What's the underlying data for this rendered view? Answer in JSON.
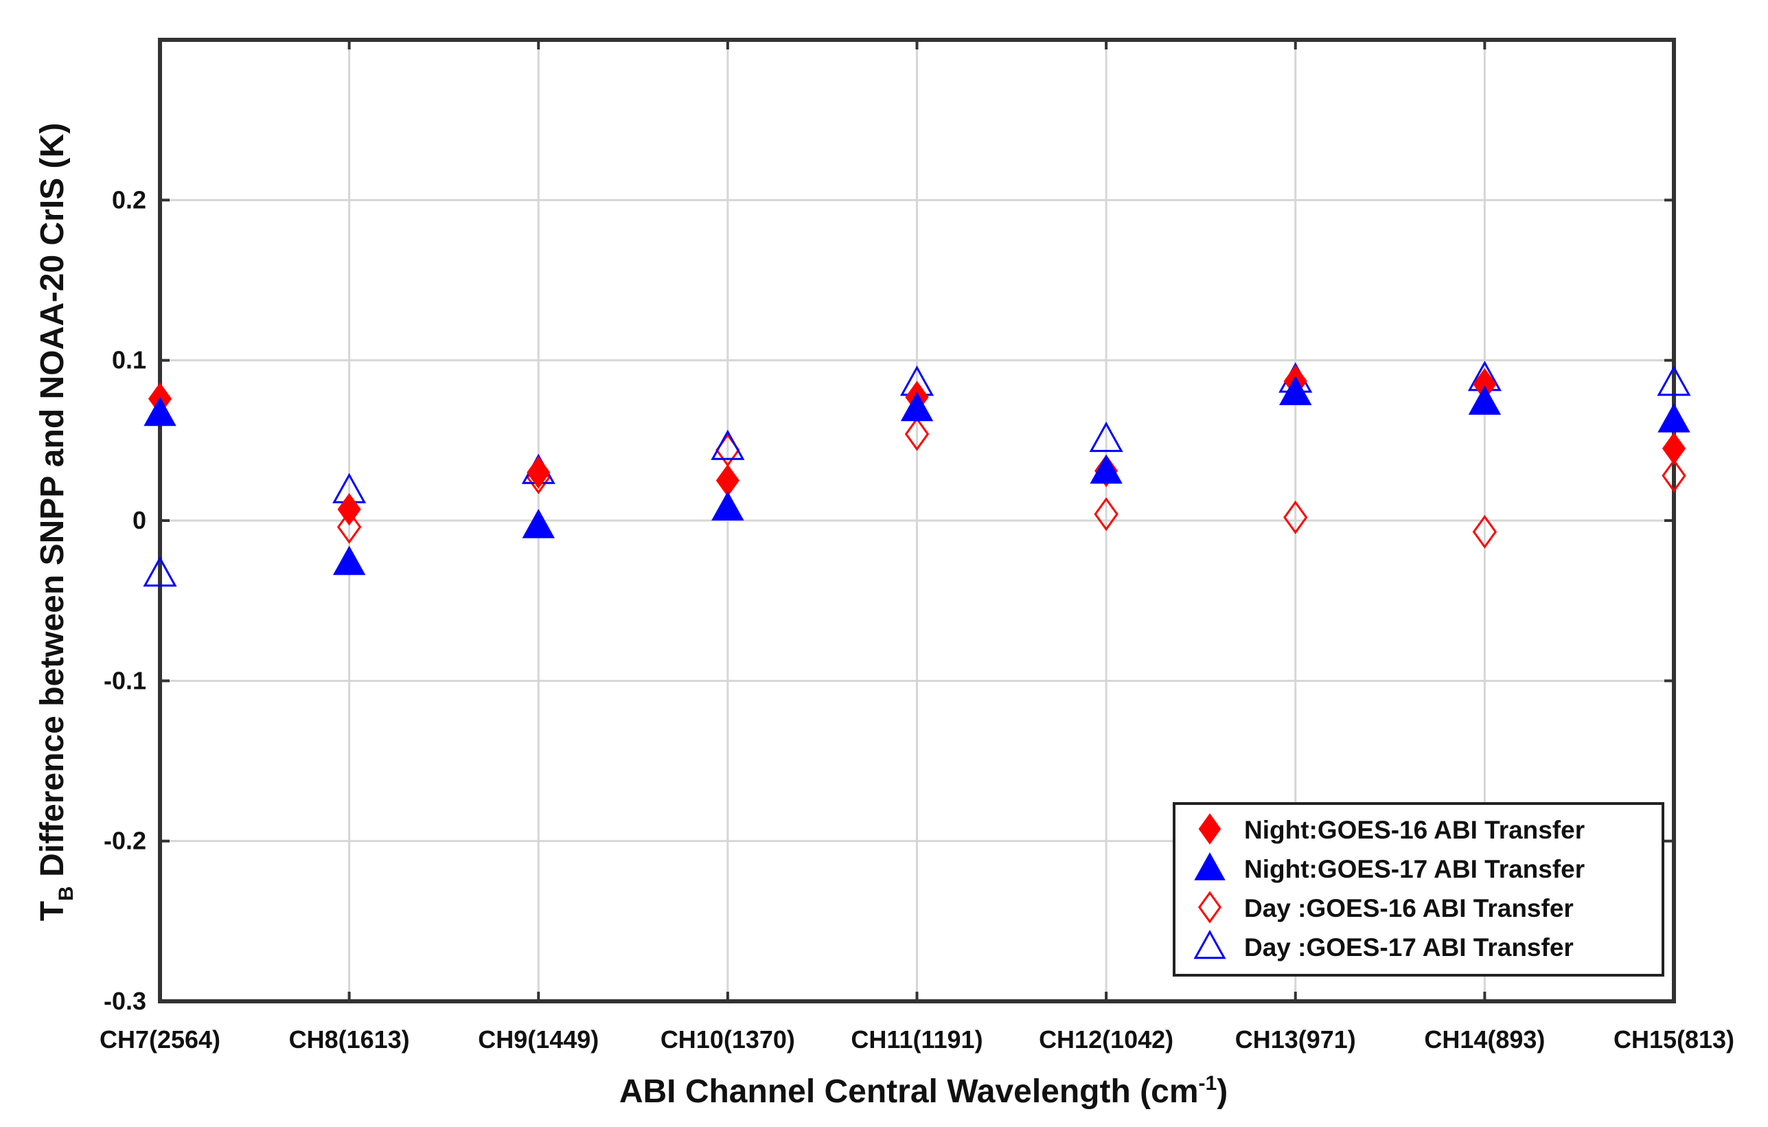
{
  "chart_data": {
    "type": "scatter",
    "title": "",
    "xlabel": "ABI Channel Central Wavelength (cm",
    "xlabel_sup": "-1",
    "xlabel_end": ")",
    "ylabel_main": "T",
    "ylabel_sub": "B",
    "ylabel_rest": " Difference between SNPP and NOAA-20 CrIS (K)",
    "categories": [
      "CH7(2564)",
      "CH8(1613)",
      "CH9(1449)",
      "CH10(1370)",
      "CH11(1191)",
      "CH12(1042)",
      "CH13(971)",
      "CH14(893)",
      "CH15(813)"
    ],
    "ylim": [
      -0.3,
      0.3
    ],
    "yticks": [
      -0.3,
      -0.2,
      -0.1,
      0,
      0.1,
      0.2
    ],
    "ytick_labels": [
      "-0.3",
      "-0.2",
      "-0.1",
      "0",
      "0.1",
      "0.2"
    ],
    "grid": true,
    "legend_position": "bottom-right",
    "series": [
      {
        "name": "Night:GOES-16 ABI Transfer",
        "marker": "diamond",
        "filled": true,
        "color": "#ff0000",
        "values": [
          0.076,
          0.007,
          0.03,
          0.025,
          0.077,
          0.031,
          0.087,
          0.085,
          0.045
        ]
      },
      {
        "name": "Night:GOES-17 ABI Transfer",
        "marker": "triangle",
        "filled": true,
        "color": "#0000ff",
        "values": [
          0.067,
          -0.026,
          -0.003,
          0.008,
          0.07,
          0.031,
          0.08,
          0.074,
          0.063
        ]
      },
      {
        "name": "Day  :GOES-16 ABI Transfer",
        "marker": "diamond",
        "filled": false,
        "color": "#ff0000",
        "values": [
          null,
          -0.004,
          0.027,
          0.044,
          0.054,
          0.004,
          0.002,
          -0.007,
          0.028
        ]
      },
      {
        "name": "Day  :GOES-17 ABI Transfer",
        "marker": "triangle",
        "filled": false,
        "color": "#0000ff",
        "values": [
          -0.033,
          0.019,
          0.031,
          0.046,
          0.086,
          0.051,
          0.088,
          0.089,
          0.086
        ]
      }
    ]
  }
}
